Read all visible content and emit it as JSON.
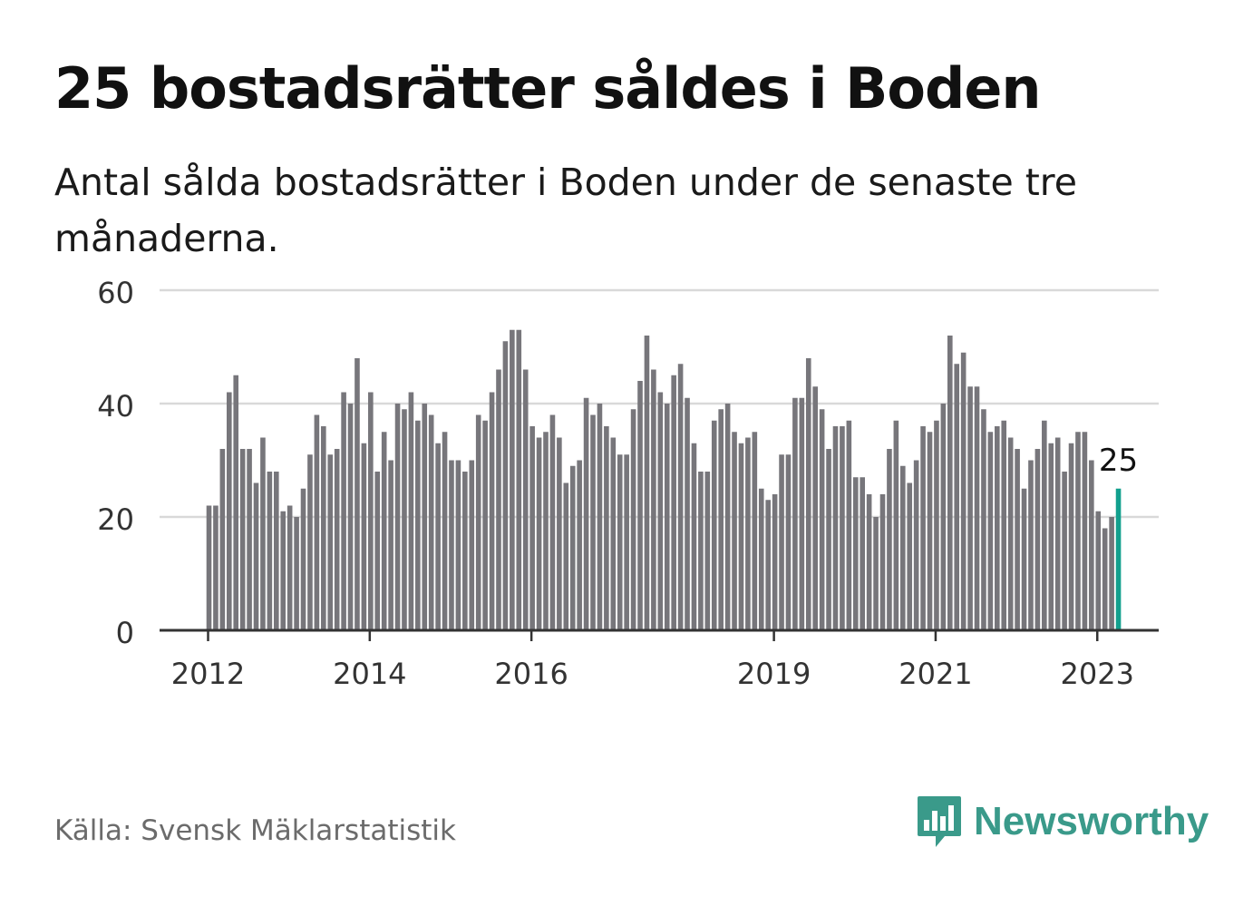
{
  "header": {
    "title": "25 bostadsrätter såldes i Boden",
    "subtitle": "Antal sålda bostadsrätter i Boden under de senaste tre månaderna."
  },
  "footer": {
    "source": "Källa: Svensk Mäklarstatistik",
    "brand": "Newsworthy",
    "brand_icon": "bar-chart-speech-bubble-icon"
  },
  "colors": {
    "bar": "#77767b",
    "highlight": "#12a08e",
    "grid": "#d9d9d9",
    "axis": "#333333",
    "brand": "#3a9a8a"
  },
  "chart_data": {
    "type": "bar",
    "x_ticks": [
      "2012",
      "2014",
      "2016",
      "2019",
      "2021",
      "2023"
    ],
    "y_ticks": [
      0,
      20,
      40,
      60
    ],
    "ylim": [
      0,
      60
    ],
    "grid": true,
    "highlight_label": "25",
    "values": [
      22,
      22,
      32,
      42,
      45,
      32,
      32,
      26,
      34,
      28,
      28,
      21,
      22,
      20,
      25,
      31,
      38,
      36,
      31,
      32,
      42,
      40,
      48,
      33,
      42,
      28,
      35,
      30,
      40,
      39,
      42,
      37,
      40,
      38,
      33,
      35,
      30,
      30,
      28,
      30,
      38,
      37,
      42,
      46,
      51,
      53,
      53,
      46,
      36,
      34,
      35,
      38,
      34,
      26,
      29,
      30,
      41,
      38,
      40,
      36,
      34,
      31,
      31,
      39,
      44,
      52,
      46,
      42,
      40,
      45,
      47,
      41,
      33,
      28,
      28,
      37,
      39,
      40,
      35,
      33,
      34,
      35,
      25,
      23,
      24,
      31,
      31,
      41,
      41,
      48,
      43,
      39,
      32,
      36,
      36,
      37,
      27,
      27,
      24,
      20,
      24,
      32,
      37,
      29,
      26,
      30,
      36,
      35,
      37,
      40,
      52,
      47,
      49,
      43,
      43,
      39,
      35,
      36,
      37,
      34,
      32,
      25,
      30,
      32,
      37,
      33,
      34,
      28,
      33,
      35,
      35,
      30,
      21,
      18,
      20,
      25
    ]
  }
}
